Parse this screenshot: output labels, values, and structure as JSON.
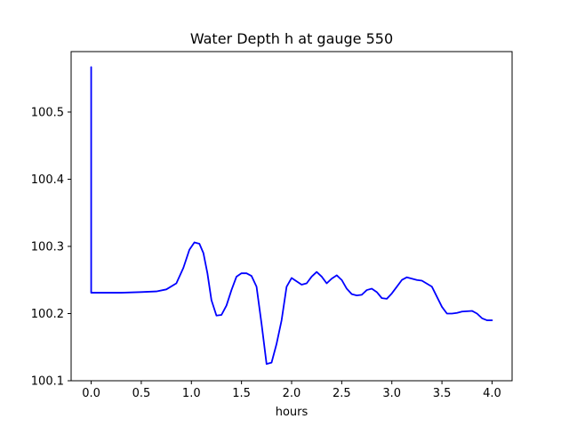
{
  "chart_data": {
    "type": "line",
    "title": "Water Depth h at gauge 550",
    "xlabel": "hours",
    "ylabel": "",
    "xlim": [
      -0.2,
      4.2
    ],
    "ylim": [
      100.1,
      100.59
    ],
    "xticks": [
      0.0,
      0.5,
      1.0,
      1.5,
      2.0,
      2.5,
      3.0,
      3.5,
      4.0
    ],
    "xtick_labels": [
      "0.0",
      "0.5",
      "1.0",
      "1.5",
      "2.0",
      "2.5",
      "3.0",
      "3.5",
      "4.0"
    ],
    "yticks": [
      100.1,
      100.2,
      100.3,
      100.4,
      100.5
    ],
    "ytick_labels": [
      "100.1",
      "100.2",
      "100.3",
      "100.4",
      "100.5"
    ],
    "grid": false,
    "series": [
      {
        "color": "#0000ff",
        "x": [
          0.0,
          0.0,
          0.0,
          0.3,
          0.5,
          0.65,
          0.75,
          0.85,
          0.92,
          0.98,
          1.03,
          1.08,
          1.12,
          1.16,
          1.2,
          1.25,
          1.3,
          1.35,
          1.4,
          1.45,
          1.5,
          1.55,
          1.6,
          1.65,
          1.7,
          1.75,
          1.8,
          1.85,
          1.9,
          1.95,
          2.0,
          2.05,
          2.1,
          2.15,
          2.2,
          2.25,
          2.3,
          2.35,
          2.4,
          2.45,
          2.5,
          2.55,
          2.6,
          2.65,
          2.7,
          2.75,
          2.8,
          2.85,
          2.9,
          2.95,
          3.0,
          3.05,
          3.1,
          3.15,
          3.2,
          3.25,
          3.3,
          3.4,
          3.5,
          3.55,
          3.6,
          3.65,
          3.7,
          3.8,
          3.85,
          3.9,
          3.95,
          4.0
        ],
        "y": [
          100.567,
          100.231,
          100.231,
          100.231,
          100.232,
          100.233,
          100.236,
          100.245,
          100.268,
          100.295,
          100.306,
          100.304,
          100.29,
          100.26,
          100.22,
          100.197,
          100.198,
          100.212,
          100.235,
          100.255,
          100.26,
          100.26,
          100.256,
          100.24,
          100.185,
          100.125,
          100.127,
          100.155,
          100.19,
          100.24,
          100.253,
          100.248,
          100.243,
          100.245,
          100.255,
          100.262,
          100.255,
          100.245,
          100.252,
          100.257,
          100.25,
          100.237,
          100.229,
          100.227,
          100.228,
          100.235,
          100.237,
          100.232,
          100.223,
          100.222,
          100.23,
          100.24,
          100.25,
          100.254,
          100.252,
          100.25,
          100.249,
          100.24,
          100.21,
          100.2,
          100.2,
          100.201,
          100.203,
          100.204,
          100.2,
          100.193,
          100.19,
          100.19
        ]
      }
    ]
  }
}
